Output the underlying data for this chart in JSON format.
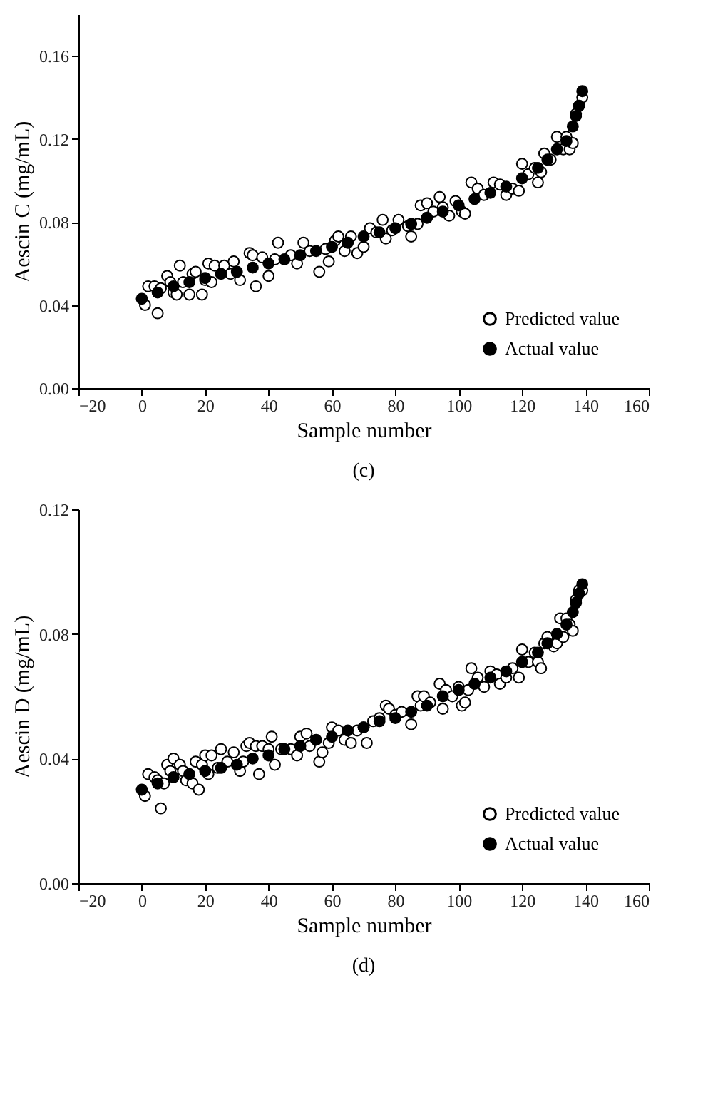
{
  "chart_data": [
    {
      "type": "scatter",
      "xlabel": "Sample number",
      "ylabel": "Aescin C (mg/mL)",
      "annotations": [
        "(c)"
      ],
      "xlim": [
        -20,
        160
      ],
      "xticks": [
        -20,
        0,
        20,
        40,
        60,
        80,
        100,
        120,
        140,
        160
      ],
      "ylim": [
        0,
        0.18
      ],
      "yticks": [
        {
          "value": 0,
          "label": "0.00"
        },
        {
          "value": 0.04,
          "label": "0.04"
        },
        {
          "value": 0.08,
          "label": "0.08"
        },
        {
          "value": 0.12,
          "label": "0.12"
        },
        {
          "value": 0.16,
          "label": "0.16"
        }
      ],
      "legend": "bottom right",
      "marker": "circle",
      "series": [
        {
          "name": "Predicted value",
          "color": "#ffffff",
          "x": [
            1,
            2,
            4,
            5,
            6,
            8,
            9,
            10,
            11,
            12,
            13,
            15,
            16,
            17,
            19,
            20,
            21,
            22,
            23,
            26,
            28,
            29,
            31,
            34,
            35,
            36,
            38,
            40,
            42,
            43,
            47,
            49,
            51,
            53,
            56,
            58,
            59,
            61,
            62,
            64,
            66,
            68,
            70,
            72,
            74,
            76,
            77,
            79,
            81,
            84,
            85,
            87,
            88,
            90,
            92,
            94,
            95,
            97,
            99,
            101,
            102,
            104,
            106,
            108,
            111,
            113,
            115,
            117,
            119,
            120,
            122,
            124,
            125,
            126,
            127,
            129,
            131,
            133,
            134,
            135,
            136,
            137,
            138,
            139
          ],
          "values": [
            0.04,
            0.049,
            0.049,
            0.036,
            0.048,
            0.054,
            0.051,
            0.046,
            0.045,
            0.059,
            0.051,
            0.045,
            0.055,
            0.056,
            0.045,
            0.052,
            0.06,
            0.051,
            0.059,
            0.059,
            0.055,
            0.061,
            0.052,
            0.065,
            0.064,
            0.049,
            0.063,
            0.054,
            0.062,
            0.07,
            0.064,
            0.06,
            0.07,
            0.066,
            0.056,
            0.067,
            0.061,
            0.071,
            0.073,
            0.066,
            0.073,
            0.065,
            0.068,
            0.077,
            0.075,
            0.081,
            0.072,
            0.076,
            0.081,
            0.078,
            0.073,
            0.079,
            0.088,
            0.089,
            0.085,
            0.092,
            0.087,
            0.083,
            0.09,
            0.085,
            0.084,
            0.099,
            0.096,
            0.093,
            0.099,
            0.098,
            0.093,
            0.096,
            0.095,
            0.108,
            0.103,
            0.106,
            0.099,
            0.104,
            0.113,
            0.11,
            0.121,
            0.115,
            0.121,
            0.115,
            0.118,
            0.132,
            0.136,
            0.14
          ]
        },
        {
          "name": "Actual value",
          "color": "#000000",
          "x": [
            0,
            5,
            10,
            15,
            20,
            25,
            30,
            35,
            40,
            45,
            50,
            55,
            60,
            65,
            70,
            75,
            80,
            85,
            90,
            95,
            100,
            105,
            110,
            115,
            120,
            125,
            128,
            131,
            134,
            136,
            137,
            138,
            139
          ],
          "values": [
            0.043,
            0.046,
            0.049,
            0.051,
            0.053,
            0.055,
            0.056,
            0.058,
            0.06,
            0.062,
            0.064,
            0.066,
            0.068,
            0.07,
            0.073,
            0.075,
            0.077,
            0.079,
            0.082,
            0.085,
            0.088,
            0.091,
            0.094,
            0.097,
            0.101,
            0.106,
            0.11,
            0.115,
            0.119,
            0.126,
            0.131,
            0.136,
            0.143
          ]
        }
      ]
    },
    {
      "type": "scatter",
      "xlabel": "Sample number",
      "ylabel": "Aescin D (mg/mL)",
      "annotations": [
        "(d)"
      ],
      "xlim": [
        -20,
        160
      ],
      "xticks": [
        -20,
        0,
        20,
        40,
        60,
        80,
        100,
        120,
        140,
        160
      ],
      "ylim": [
        0,
        0.12
      ],
      "yticks": [
        {
          "value": 0,
          "label": "0.00"
        },
        {
          "value": 0.04,
          "label": "0.04"
        },
        {
          "value": 0.08,
          "label": "0.08"
        },
        {
          "value": 0.12,
          "label": "0.12"
        }
      ],
      "legend": "bottom right",
      "marker": "circle",
      "series": [
        {
          "name": "Predicted value",
          "color": "#ffffff",
          "x": [
            1,
            2,
            4,
            5,
            6,
            7,
            8,
            9,
            10,
            12,
            13,
            14,
            16,
            17,
            18,
            19,
            20,
            21,
            22,
            24,
            25,
            27,
            29,
            31,
            32,
            33,
            34,
            36,
            37,
            38,
            40,
            41,
            42,
            44,
            47,
            49,
            50,
            52,
            53,
            56,
            57,
            59,
            60,
            62,
            64,
            66,
            68,
            70,
            71,
            73,
            75,
            77,
            78,
            80,
            82,
            85,
            87,
            88,
            89,
            91,
            94,
            95,
            96,
            98,
            100,
            101,
            102,
            103,
            104,
            106,
            108,
            110,
            112,
            113,
            115,
            117,
            119,
            120,
            122,
            124,
            125,
            126,
            127,
            128,
            130,
            131,
            132,
            133,
            134,
            135,
            136,
            137,
            138,
            139
          ],
          "values": [
            0.028,
            0.035,
            0.034,
            0.033,
            0.024,
            0.032,
            0.038,
            0.036,
            0.04,
            0.038,
            0.036,
            0.033,
            0.032,
            0.039,
            0.03,
            0.038,
            0.041,
            0.035,
            0.041,
            0.037,
            0.043,
            0.039,
            0.042,
            0.036,
            0.039,
            0.044,
            0.045,
            0.044,
            0.035,
            0.044,
            0.043,
            0.047,
            0.038,
            0.043,
            0.043,
            0.041,
            0.047,
            0.048,
            0.044,
            0.039,
            0.042,
            0.045,
            0.05,
            0.049,
            0.046,
            0.045,
            0.049,
            0.05,
            0.045,
            0.052,
            0.053,
            0.057,
            0.056,
            0.054,
            0.055,
            0.051,
            0.06,
            0.057,
            0.06,
            0.058,
            0.064,
            0.056,
            0.062,
            0.06,
            0.063,
            0.057,
            0.058,
            0.062,
            0.069,
            0.066,
            0.063,
            0.068,
            0.067,
            0.064,
            0.066,
            0.069,
            0.066,
            0.075,
            0.071,
            0.074,
            0.071,
            0.069,
            0.077,
            0.079,
            0.076,
            0.077,
            0.085,
            0.079,
            0.085,
            0.083,
            0.081,
            0.091,
            0.094,
            0.094
          ]
        },
        {
          "name": "Actual value",
          "color": "#000000",
          "x": [
            0,
            5,
            10,
            15,
            20,
            25,
            30,
            35,
            40,
            45,
            50,
            55,
            60,
            65,
            70,
            75,
            80,
            85,
            90,
            95,
            100,
            105,
            110,
            115,
            120,
            125,
            128,
            131,
            134,
            136,
            137,
            138,
            139
          ],
          "values": [
            0.03,
            0.032,
            0.034,
            0.035,
            0.036,
            0.037,
            0.038,
            0.04,
            0.041,
            0.043,
            0.044,
            0.046,
            0.047,
            0.049,
            0.05,
            0.052,
            0.053,
            0.055,
            0.057,
            0.06,
            0.062,
            0.064,
            0.066,
            0.068,
            0.071,
            0.074,
            0.077,
            0.08,
            0.083,
            0.087,
            0.09,
            0.093,
            0.096
          ]
        }
      ]
    }
  ]
}
